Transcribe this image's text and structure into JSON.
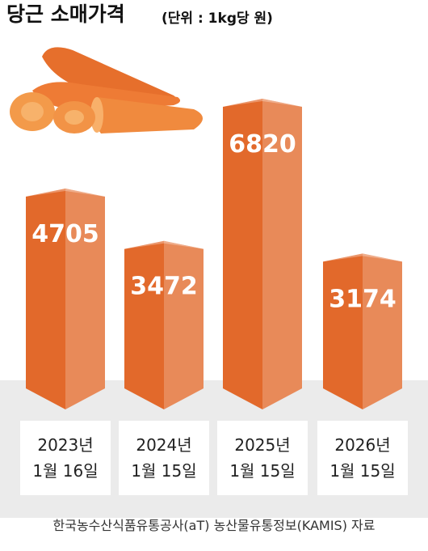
{
  "chart_data": {
    "type": "bar",
    "title": "당근 소매가격",
    "subtitle": "(단위 : 1kg당 원)",
    "categories": [
      "2023년\n1월 16일",
      "2024년\n1월 15일",
      "2025년\n1월 15일",
      "2026년\n1월 15일"
    ],
    "values": [
      4705,
      3472,
      6820,
      3174
    ],
    "color": "#e2692b",
    "source": "한국농수산식품유통공사(aT) 농산물유통정보(KAMIS) 자료"
  }
}
